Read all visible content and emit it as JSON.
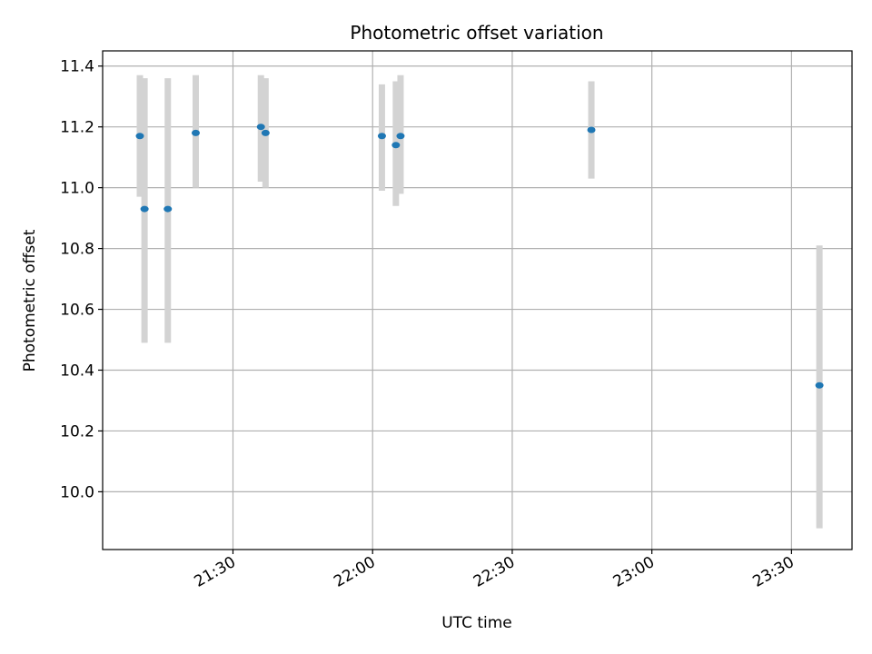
{
  "chart_data": {
    "type": "scatter",
    "title": "Photometric offset variation",
    "xlabel": "UTC time",
    "ylabel": "Photometric offset",
    "x_ticks": [
      "21:30",
      "22:00",
      "22:30",
      "23:00",
      "23:30"
    ],
    "y_ticks": [
      "10.0",
      "10.2",
      "10.4",
      "10.6",
      "10.8",
      "11.0",
      "11.2",
      "11.4"
    ],
    "xlim": [
      "21:02",
      "23:43"
    ],
    "ylim": [
      9.81,
      11.45
    ],
    "grid": true,
    "colors": {
      "points": "#1f77b4",
      "errorbars": "#d3d3d3",
      "grid": "#b0b0b0"
    },
    "series": [
      {
        "points": [
          {
            "x": "21:10",
            "y": 11.17,
            "yerr_low": 10.97,
            "yerr_high": 11.37
          },
          {
            "x": "21:11",
            "y": 10.93,
            "yerr_low": 10.49,
            "yerr_high": 11.36
          },
          {
            "x": "21:16",
            "y": 10.93,
            "yerr_low": 10.49,
            "yerr_high": 11.36
          },
          {
            "x": "21:22",
            "y": 11.18,
            "yerr_low": 11.0,
            "yerr_high": 11.37
          },
          {
            "x": "21:36",
            "y": 11.2,
            "yerr_low": 11.02,
            "yerr_high": 11.37
          },
          {
            "x": "21:37",
            "y": 11.18,
            "yerr_low": 11.0,
            "yerr_high": 11.36
          },
          {
            "x": "22:02",
            "y": 11.17,
            "yerr_low": 10.99,
            "yerr_high": 11.34
          },
          {
            "x": "22:05",
            "y": 11.14,
            "yerr_low": 10.94,
            "yerr_high": 11.35
          },
          {
            "x": "22:06",
            "y": 11.17,
            "yerr_low": 10.98,
            "yerr_high": 11.37
          },
          {
            "x": "22:47",
            "y": 11.19,
            "yerr_low": 11.03,
            "yerr_high": 11.35
          },
          {
            "x": "23:36",
            "y": 10.35,
            "yerr_low": 9.88,
            "yerr_high": 10.81
          }
        ]
      }
    ]
  }
}
